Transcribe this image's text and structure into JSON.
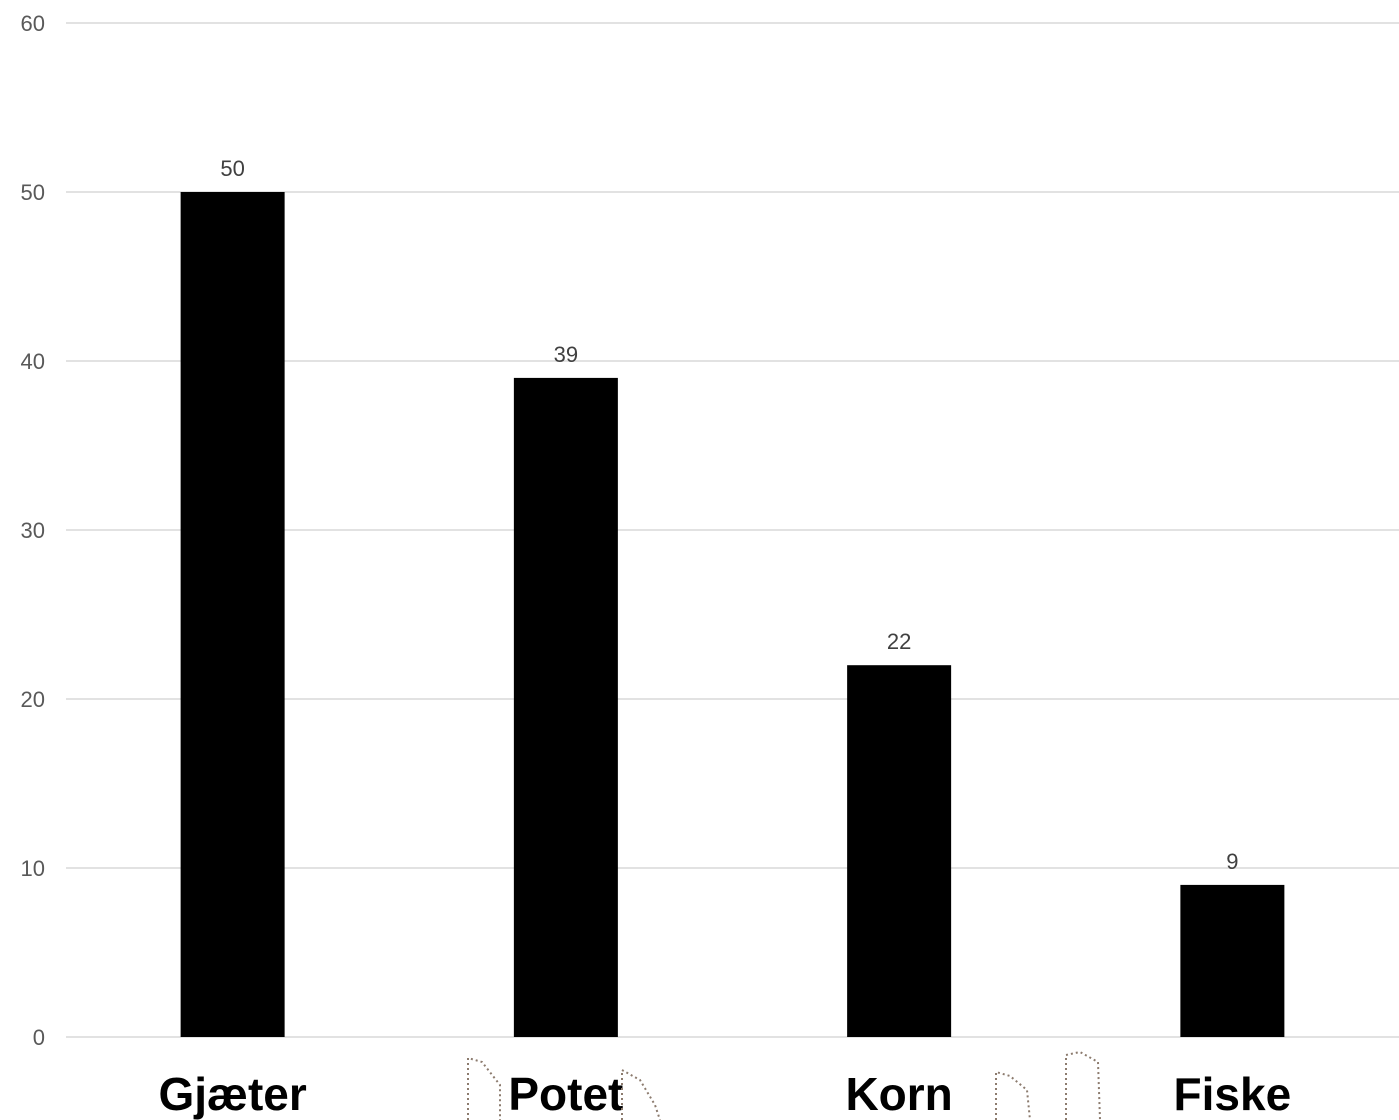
{
  "chart_data": {
    "type": "bar",
    "title": "",
    "xlabel": "",
    "ylabel": "",
    "categories": [
      "Gjæter",
      "Potet",
      "Korn",
      "Fiske"
    ],
    "values": [
      50,
      39,
      22,
      9
    ],
    "ylim": [
      0,
      60
    ],
    "yticks": [
      0,
      10,
      20,
      30,
      40,
      50,
      60
    ],
    "grid": true,
    "data_labels": true,
    "colors": {
      "bar": "#000000",
      "grid": "#d9d9d9",
      "tick_text": "#595959",
      "label_text": "#404040",
      "outline": "#8c7b6e"
    }
  }
}
